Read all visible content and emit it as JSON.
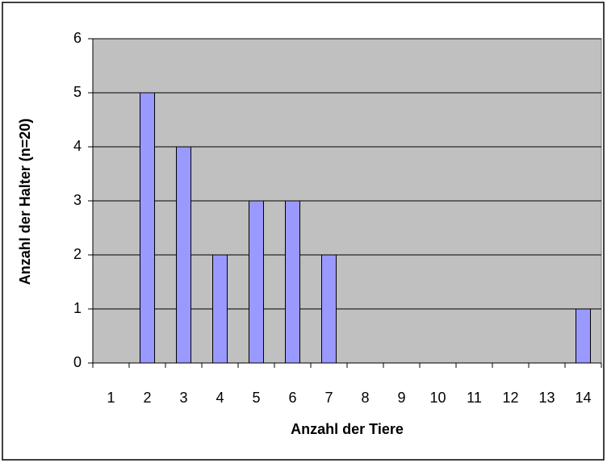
{
  "chart_data": {
    "type": "bar",
    "x_label": "Anzahl der Tiere",
    "y_label": "Anzahl der Halter (n=20)",
    "categories": [
      "1",
      "2",
      "3",
      "4",
      "5",
      "6",
      "7",
      "8",
      "9",
      "10",
      "11",
      "12",
      "13",
      "14"
    ],
    "values": [
      0,
      5,
      4,
      2,
      3,
      3,
      2,
      0,
      0,
      0,
      0,
      0,
      0,
      1
    ],
    "color": "#9999ff",
    "ylim": [
      0,
      6
    ],
    "yticks": [
      0,
      1,
      2,
      3,
      4,
      5,
      6
    ],
    "grid": true
  }
}
